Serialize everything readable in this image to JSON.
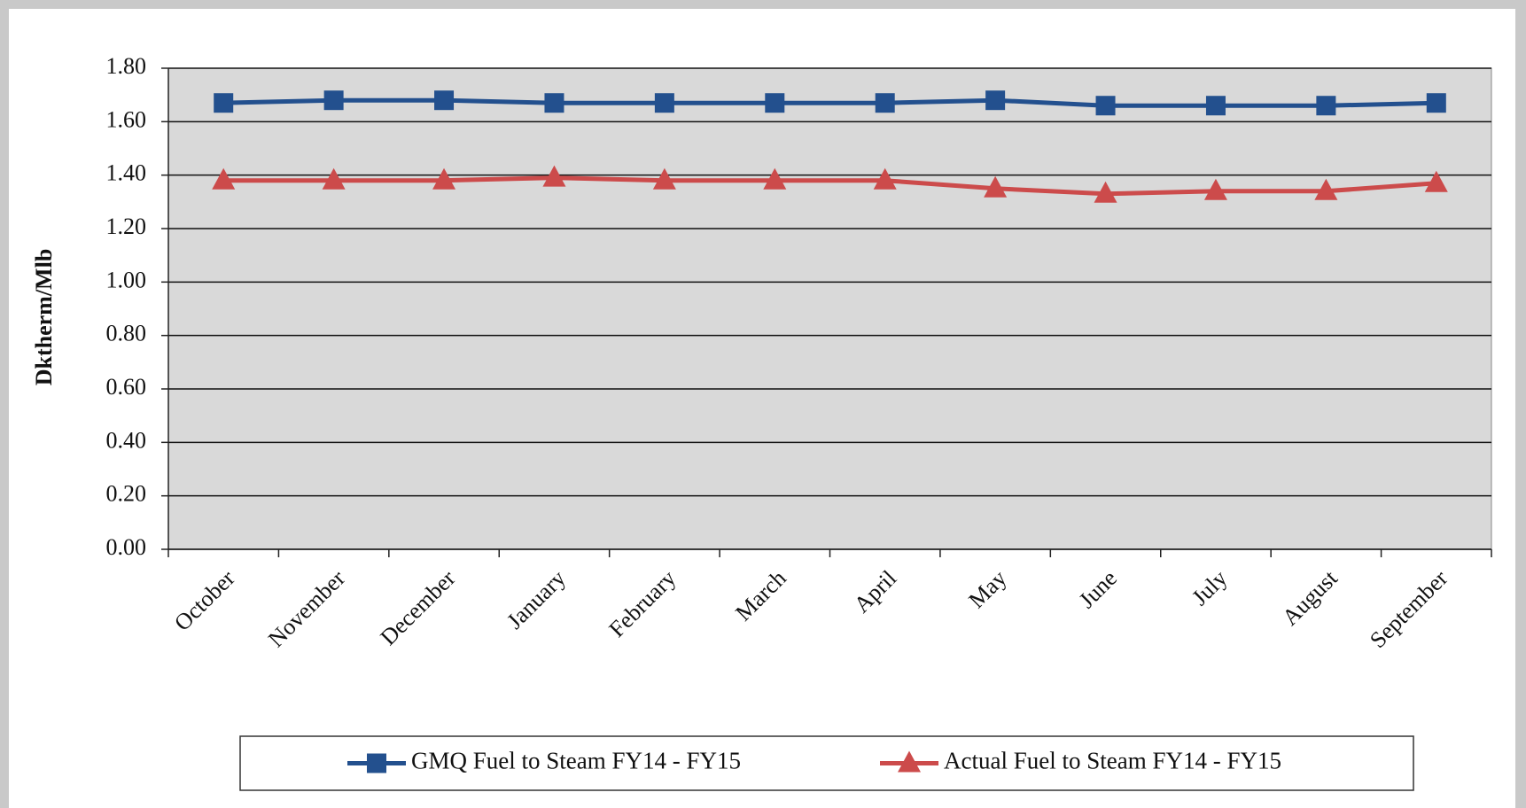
{
  "chart_data": {
    "type": "line",
    "y_label": "Dktherm/Mlb",
    "categories": [
      "October",
      "November",
      "December",
      "January",
      "February",
      "March",
      "April",
      "May",
      "June",
      "July",
      "August",
      "September"
    ],
    "series": [
      {
        "name": "GMQ Fuel to Steam FY14 - FY15",
        "color": "#23508e",
        "marker": "square",
        "values": [
          1.67,
          1.68,
          1.68,
          1.67,
          1.67,
          1.67,
          1.67,
          1.68,
          1.66,
          1.66,
          1.66,
          1.67
        ]
      },
      {
        "name": "Actual Fuel to Steam FY14 - FY15",
        "color": "#cc4b4b",
        "marker": "triangle",
        "values": [
          1.38,
          1.38,
          1.38,
          1.39,
          1.38,
          1.38,
          1.38,
          1.35,
          1.33,
          1.34,
          1.34,
          1.37
        ]
      }
    ],
    "ylim": [
      0,
      1.8
    ],
    "yticks": [
      {
        "value": 0,
        "label": "0.00"
      },
      {
        "value": 0.2,
        "label": "0.20"
      },
      {
        "value": 0.4,
        "label": "0.40"
      },
      {
        "value": 0.6,
        "label": "0.60"
      },
      {
        "value": 0.8,
        "label": "0.80"
      },
      {
        "value": 1,
        "label": "1.00"
      },
      {
        "value": 1.2,
        "label": "1.20"
      },
      {
        "value": 1.4,
        "label": "1.40"
      },
      {
        "value": 1.6,
        "label": "1.60"
      },
      {
        "value": 1.8,
        "label": "1.80"
      }
    ],
    "grid": true,
    "legend": "bottom"
  }
}
